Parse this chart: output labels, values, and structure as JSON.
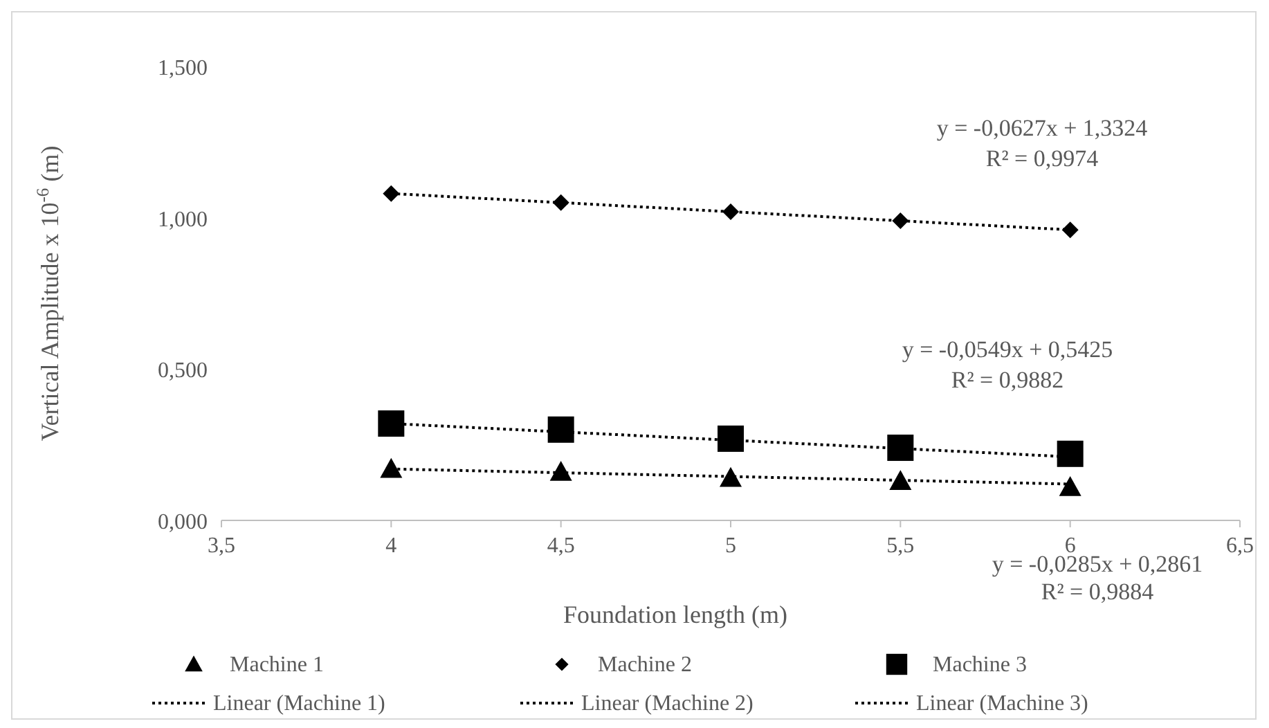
{
  "chart_data": {
    "type": "scatter",
    "xlabel": "Foundation length (m)",
    "ylabel": "Vertical Amplitude x 10$^{-6}$ (m)",
    "xlim": [
      3.5,
      6.5
    ],
    "xticks": [
      {
        "value": 3.5,
        "label": "3,5"
      },
      4,
      {
        "value": 4.5,
        "label": "4,5"
      },
      5,
      {
        "value": 5.5,
        "label": "5,5"
      },
      6,
      {
        "value": 6.5,
        "label": "6,5"
      }
    ],
    "ylim": [
      0,
      1.5
    ],
    "yticks": [
      {
        "value": 0,
        "label": "0,000"
      },
      {
        "value": 0.5,
        "label": "0,500"
      },
      {
        "value": 1,
        "label": "1,000"
      },
      {
        "value": 1.5,
        "label": "1,500"
      }
    ],
    "grid": false,
    "legend": "bottom",
    "series": [
      {
        "name": "Machine 1",
        "type": "scatter",
        "marker": "triangle",
        "color": "#000000",
        "x": [
          4,
          4.5,
          5,
          5.5,
          6
        ],
        "values": [
          0.17,
          0.16,
          0.14,
          0.13,
          0.11
        ]
      },
      {
        "name": "Machine 2",
        "type": "scatter",
        "marker": "diamond",
        "color": "#000000",
        "x": [
          4,
          4.5,
          5,
          5.5,
          6
        ],
        "values": [
          1.08,
          1.05,
          1.02,
          0.99,
          0.96
        ]
      },
      {
        "name": "Machine 3",
        "type": "scatter",
        "marker": "square",
        "color": "#000000",
        "x": [
          4,
          4.5,
          5,
          5.5,
          6
        ],
        "values": [
          0.32,
          0.3,
          0.27,
          0.24,
          0.22
        ]
      },
      {
        "name": "Linear (Machine 1)",
        "type": "line",
        "marker": "none",
        "line_style": "dotted",
        "color": "#000000",
        "x": [
          4,
          6
        ],
        "values": [
          0.17,
          0.12
        ]
      },
      {
        "name": "Linear (Machine 2)",
        "type": "line",
        "marker": "none",
        "line_style": "dotted",
        "color": "#000000",
        "x": [
          4,
          6
        ],
        "values": [
          1.08,
          0.96
        ]
      },
      {
        "name": "Linear (Machine 3)",
        "type": "line",
        "marker": "none",
        "line_style": "dotted",
        "color": "#000000",
        "x": [
          4,
          6
        ],
        "values": [
          0.32,
          0.21
        ]
      }
    ],
    "annotations": [
      "y = -0,0627x + 1,3324",
      "R² = 0,9974",
      "y = -0,0549x + 0,5425",
      "R² = 0,9882",
      "y = -0,0285x + 0,2861",
      "R² = 0,9884"
    ]
  }
}
